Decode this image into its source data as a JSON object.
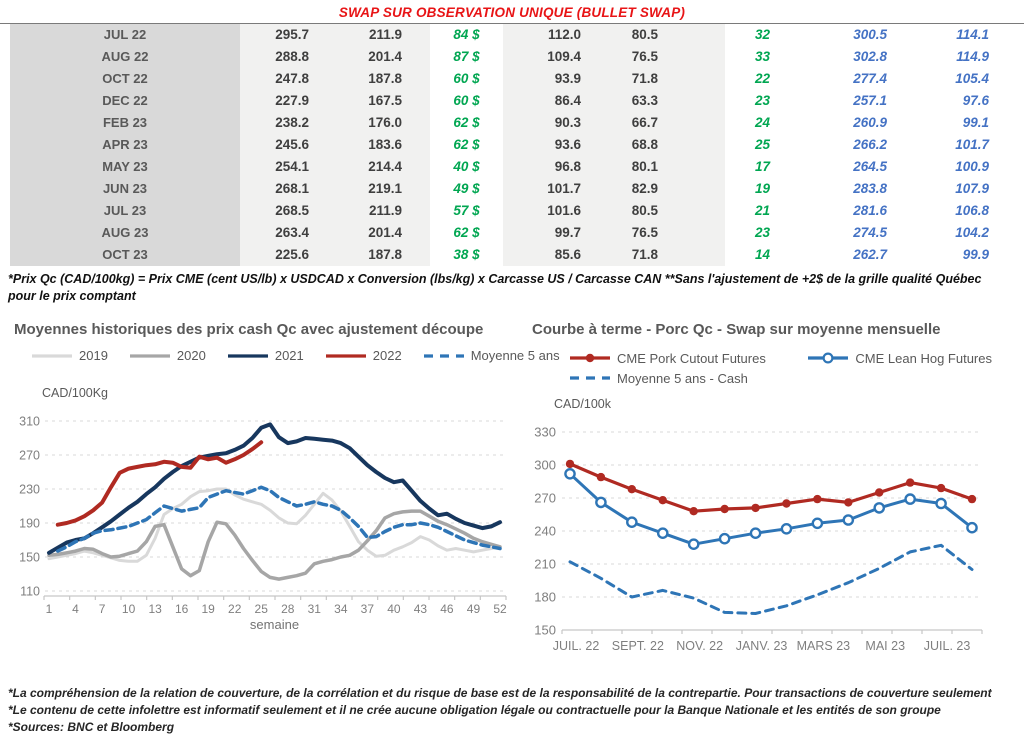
{
  "title": "SWAP SUR OBSERVATION UNIQUE (BULLET SWAP)",
  "colors": {
    "title_red": "#e81416",
    "green": "#00a651",
    "blue": "#4472c4",
    "month_gray": "#595959",
    "num_dark": "#3f3f3f",
    "navy_2021": "#17375e",
    "red_2022": "#b02a22",
    "gray_2020": "#a6a6a6",
    "lightgray_2019": "#d9d9d9",
    "steel_blue": "#2e75b6",
    "axis_gray": "#7f7f7f"
  },
  "table": {
    "rows": [
      [
        "JUL 22",
        "295.7",
        "211.9",
        "84 $",
        "112.0",
        "80.5",
        "32",
        "300.5",
        "114.1"
      ],
      [
        "AUG 22",
        "288.8",
        "201.4",
        "87 $",
        "109.4",
        "76.5",
        "33",
        "302.8",
        "114.9"
      ],
      [
        "OCT 22",
        "247.8",
        "187.8",
        "60 $",
        "93.9",
        "71.8",
        "22",
        "277.4",
        "105.4"
      ],
      [
        "DEC 22",
        "227.9",
        "167.5",
        "60 $",
        "86.4",
        "63.3",
        "23",
        "257.1",
        "97.6"
      ],
      [
        "FEB 23",
        "238.2",
        "176.0",
        "62 $",
        "90.3",
        "66.7",
        "24",
        "260.9",
        "99.1"
      ],
      [
        "APR 23",
        "245.6",
        "183.6",
        "62 $",
        "93.6",
        "68.8",
        "25",
        "266.2",
        "101.7"
      ],
      [
        "MAY 23",
        "254.1",
        "214.4",
        "40 $",
        "96.8",
        "80.1",
        "17",
        "264.5",
        "100.9"
      ],
      [
        "JUN 23",
        "268.1",
        "219.1",
        "49 $",
        "101.7",
        "82.9",
        "19",
        "283.8",
        "107.9"
      ],
      [
        "JUL 23",
        "268.5",
        "211.9",
        "57 $",
        "101.6",
        "80.5",
        "21",
        "281.6",
        "106.8"
      ],
      [
        "AUG 23",
        "263.4",
        "201.4",
        "62 $",
        "99.7",
        "76.5",
        "23",
        "274.5",
        "104.2"
      ],
      [
        "OCT 23",
        "225.6",
        "187.8",
        "38 $",
        "85.6",
        "71.8",
        "14",
        "262.7",
        "99.9"
      ]
    ],
    "footnote": "*Prix Qc (CAD/100kg) = Prix CME (cent US/lb) x USDCAD x Conversion (lbs/kg) x Carcasse US / Carcasse CAN **Sans l'ajustement de +2$ de la grille qualité Québec pour le prix comptant"
  },
  "chart_data": [
    {
      "type": "line",
      "title": "Moyennes historiques des prix cash Qc avec ajustement découpe",
      "ylabel": "CAD/100Kg",
      "xlabel": "semaine",
      "ylim": [
        110,
        310
      ],
      "yticks": [
        110,
        150,
        190,
        230,
        270,
        310
      ],
      "xticks": [
        1,
        4,
        7,
        10,
        13,
        16,
        19,
        22,
        25,
        28,
        31,
        34,
        37,
        40,
        43,
        46,
        49,
        52
      ],
      "x_range": [
        1,
        52
      ],
      "grid": true,
      "legend_position": "top",
      "series": [
        {
          "name": "2019",
          "color": "#d9d9d9",
          "style": "solid",
          "width": 3,
          "values": [
            148,
            150,
            152,
            154,
            157,
            155,
            152,
            149,
            146,
            145,
            145,
            152,
            172,
            200,
            207,
            212,
            221,
            227,
            228,
            230,
            230,
            223,
            218,
            215,
            212,
            205,
            196,
            190,
            189,
            199,
            212,
            225,
            217,
            204,
            186,
            168,
            158,
            151,
            152,
            158,
            162,
            167,
            174,
            170,
            163,
            158,
            160,
            158,
            156,
            158,
            160,
            162
          ]
        },
        {
          "name": "2020",
          "color": "#a6a6a6",
          "style": "solid",
          "width": 3.5,
          "values": [
            152,
            153,
            155,
            157,
            160,
            159,
            154,
            150,
            151,
            154,
            157,
            168,
            186,
            188,
            162,
            136,
            128,
            134,
            168,
            191,
            189,
            176,
            160,
            146,
            133,
            126,
            124,
            126,
            128,
            131,
            142,
            145,
            147,
            150,
            152,
            158,
            169,
            181,
            196,
            201,
            203,
            204,
            204,
            198,
            192,
            188,
            183,
            178,
            172,
            168,
            165,
            162
          ]
        },
        {
          "name": "2021",
          "color": "#17375e",
          "style": "solid",
          "width": 4,
          "values": [
            155,
            161,
            167,
            170,
            172,
            178,
            185,
            192,
            200,
            208,
            215,
            224,
            232,
            242,
            250,
            257,
            262,
            267,
            269,
            271,
            272,
            276,
            281,
            290,
            302,
            306,
            291,
            284,
            286,
            290,
            289,
            288,
            287,
            284,
            278,
            268,
            258,
            250,
            243,
            238,
            240,
            228,
            216,
            207,
            199,
            201,
            195,
            190,
            187,
            184,
            186,
            191
          ]
        },
        {
          "name": "2022",
          "color": "#b02a22",
          "style": "solid",
          "width": 4,
          "values": [
            null,
            188,
            190,
            193,
            198,
            205,
            214,
            232,
            249,
            254,
            256,
            258,
            259,
            262,
            261,
            256,
            255,
            268,
            265,
            267,
            261,
            265,
            270,
            277,
            285,
            null,
            null,
            null,
            null,
            null,
            null,
            null,
            null,
            null,
            null,
            null,
            null,
            null,
            null,
            null,
            null,
            null,
            null,
            null,
            null,
            null,
            null,
            null,
            null,
            null,
            null,
            null
          ]
        },
        {
          "name": "Moyenne 5 ans",
          "color": "#2e75b6",
          "style": "dashed",
          "width": 3.5,
          "values": [
            null,
            157,
            162,
            168,
            172,
            178,
            181,
            182,
            184,
            186,
            190,
            194,
            202,
            210,
            207,
            204,
            206,
            208,
            220,
            224,
            228,
            226,
            224,
            228,
            232,
            228,
            220,
            215,
            210,
            212,
            215,
            212,
            210,
            205,
            196,
            186,
            173,
            174,
            180,
            185,
            188,
            188,
            190,
            188,
            185,
            180,
            175,
            170,
            167,
            164,
            162,
            160
          ]
        }
      ]
    },
    {
      "type": "line",
      "title": "Courbe à terme - Porc Qc - Swap sur moyenne mensuelle",
      "ylabel": "CAD/100k",
      "ylim": [
        150,
        330
      ],
      "yticks": [
        150,
        180,
        210,
        240,
        270,
        300,
        330
      ],
      "n_points": 14,
      "xticklabels": [
        "JUIL. 22",
        "SEPT. 22",
        "NOV. 22",
        "JANV. 23",
        "MARS 23",
        "MAI 23",
        "JUIL. 23"
      ],
      "xtick_positions": [
        0,
        2,
        4,
        6,
        8,
        10,
        12
      ],
      "grid": true,
      "legend_position": "top",
      "series": [
        {
          "name": "CME Pork Cutout Futures",
          "color": "#b02a22",
          "style": "solid",
          "width": 3.2,
          "marker": "filled-circle",
          "values": [
            301,
            289,
            278,
            268,
            258,
            260,
            261,
            265,
            269,
            266,
            275,
            284,
            279,
            269
          ]
        },
        {
          "name": "CME Lean Hog Futures",
          "color": "#2e75b6",
          "style": "solid",
          "width": 3,
          "marker": "open-circle",
          "values": [
            292,
            266,
            248,
            238,
            228,
            233,
            238,
            242,
            247,
            250,
            261,
            269,
            265,
            243
          ]
        },
        {
          "name": "Moyenne 5 ans - Cash",
          "color": "#2e75b6",
          "style": "dashed",
          "width": 3,
          "marker": "none",
          "values": [
            212,
            197,
            180,
            186,
            179,
            166,
            165,
            172,
            182,
            193,
            206,
            221,
            227,
            205
          ]
        }
      ]
    }
  ],
  "footer": {
    "lines": [
      "*La compréhension de la relation de couverture, de la corrélation et du risque de base est de la responsabilité de la contrepartie. Pour transactions de couverture seulement",
      "*Le contenu de cette infolettre est informatif seulement et il ne crée aucune obligation légale ou contractuelle pour la Banque Nationale et les entités de son groupe",
      "*Sources: BNC et Bloomberg"
    ]
  }
}
